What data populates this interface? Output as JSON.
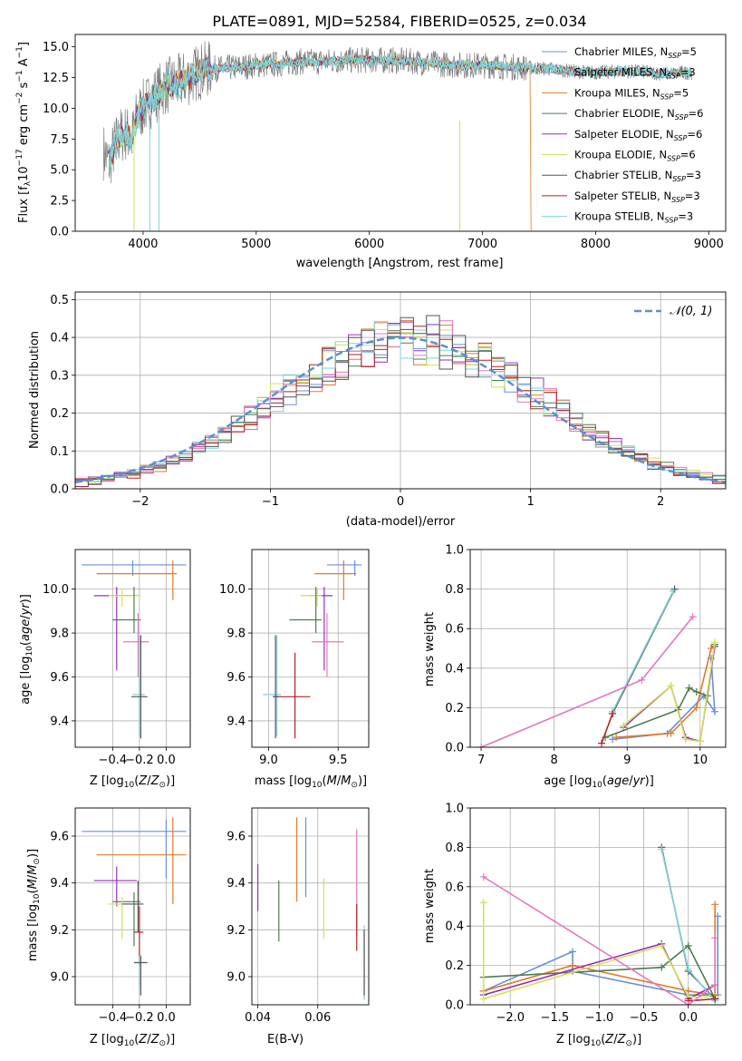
{
  "chart_data": [
    {
      "type": "line",
      "title": "PLATE=0891, MJD=52584, FIBERID=0525, z=0.034",
      "xlabel": "wavelength [Angstrom, rest frame]",
      "ylabel": "Flux [fλ10⁻¹⁷ erg cm⁻² s⁻¹ A⁻¹]",
      "xlim": [
        3400,
        9150
      ],
      "ylim": [
        0,
        16
      ],
      "xticks": [
        4000,
        5000,
        6000,
        7000,
        8000,
        9000
      ],
      "yticks": [
        0.0,
        2.5,
        5.0,
        7.5,
        10.0,
        12.5,
        15.0
      ],
      "ytick_labels": [
        "0.0",
        "2.5",
        "5.0",
        "7.5",
        "10.0",
        "12.5",
        "15.0"
      ],
      "grid": false,
      "legend": "top-right",
      "spectrum": {
        "x": [
          3650,
          3700,
          3750,
          3800,
          3850,
          3900,
          3950,
          4000,
          4100,
          4200,
          4300,
          4400,
          4500,
          4600,
          4800,
          5000,
          5200,
          5400,
          5600,
          5800,
          6000,
          6200,
          6400,
          6600,
          6800,
          7000,
          7200,
          7400,
          7600,
          7800,
          8000,
          8200,
          8400,
          8600,
          8800
        ],
        "y": [
          6.5,
          5.5,
          7.0,
          7.8,
          8.0,
          7.5,
          9.5,
          10.0,
          11.0,
          11.8,
          12.0,
          12.5,
          13.0,
          13.2,
          13.3,
          13.5,
          13.6,
          13.8,
          13.8,
          13.9,
          13.9,
          13.9,
          13.8,
          13.6,
          13.5,
          13.5,
          13.4,
          13.3,
          13.2,
          13.0,
          12.9,
          13.0,
          13.0,
          12.8,
          12.9
        ]
      },
      "series": [
        {
          "name": "Chabrier MILES, N_SSP=5",
          "color": "#6a8fd8"
        },
        {
          "name": "Salpeter MILES, N_SSP=3",
          "color": "#9a9ac0"
        },
        {
          "name": "Kroupa MILES, N_SSP=5",
          "color": "#e07b2a"
        },
        {
          "name": "Chabrier ELODIE, N_SSP=6",
          "color": "#4e7d4e"
        },
        {
          "name": "Salpeter ELODIE, N_SSP=6",
          "color": "#9b2fb5"
        },
        {
          "name": "Kroupa ELODIE, N_SSP=6",
          "color": "#d4e157"
        },
        {
          "name": "Chabrier STELIB, N_SSP=3",
          "color": "#555555"
        },
        {
          "name": "Salpeter STELIB, N_SSP=3",
          "color": "#b22222"
        },
        {
          "name": "Kroupa STELIB, N_SSP=3",
          "color": "#7fd3d9"
        }
      ],
      "legend_labels": [
        "Chabrier MILES, N",
        "Salpeter MILES, N",
        "Kroupa MILES, N",
        "Chabrier ELODIE, N",
        "Salpeter ELODIE, N",
        "Kroupa ELODIE, N",
        "Chabrier STELIB, N",
        "Salpeter STELIB, N",
        "Kroupa STELIB, N"
      ],
      "legend_subs": [
        "SSP",
        "SSP",
        "SSP",
        "SSP",
        "SSP",
        "SSP",
        "SSP",
        "SSP",
        "SSP"
      ],
      "legend_vals": [
        "=5",
        "=3",
        "=5",
        "=6",
        "=6",
        "=6",
        "=3",
        "=3",
        "=3"
      ]
    },
    {
      "type": "line",
      "xlabel": "(data-model)/error",
      "ylabel": "Normed distribution",
      "xlim": [
        -2.5,
        2.5
      ],
      "ylim": [
        0,
        0.52
      ],
      "xticks": [
        -2,
        -1,
        0,
        1,
        2
      ],
      "xtick_labels": [
        "−2",
        "−1",
        "0",
        "1",
        "2"
      ],
      "yticks": [
        0.0,
        0.1,
        0.2,
        0.3,
        0.4,
        0.5
      ],
      "ytick_labels": [
        "0.0",
        "0.1",
        "0.2",
        "0.3",
        "0.4",
        "0.5"
      ],
      "grid": true,
      "legend": "top-right",
      "legend_label": "𝒩(0, 1)",
      "reference_curve": {
        "name": "N(0,1)",
        "color": "#5b8fd4"
      },
      "histogram_bin_edges_range": [
        -2.5,
        2.5
      ],
      "histogram_bin_count": 50
    },
    {
      "type": "scatter",
      "xlabel": "Z [log₁₀(Z/Z⊙)]",
      "ylabel": "age  [log₁₀(age/yr)]",
      "xlim": [
        -0.68,
        0.18
      ],
      "ylim": [
        9.28,
        10.18
      ],
      "xticks": [
        -0.4,
        -0.2,
        0.0
      ],
      "xtick_labels": [
        "−0.4",
        "−0.2",
        "0.0"
      ],
      "yticks": [
        9.4,
        9.6,
        9.8,
        10.0
      ],
      "ytick_labels": [
        "9.4",
        "9.6",
        "9.8",
        "10.0"
      ],
      "grid": true,
      "errorbars": [
        {
          "color": "#6a8fd8",
          "x": -0.25,
          "xerr": [
            0.38,
            0.4
          ],
          "y": 10.11,
          "yerr": [
            0.05,
            0.02
          ]
        },
        {
          "color": "#e07b2a",
          "x": 0.05,
          "xerr": [
            0.57,
            0.03
          ],
          "y": 10.07,
          "yerr": [
            0.12,
            0.06
          ]
        },
        {
          "color": "#9b2fb5",
          "x": -0.37,
          "xerr": [
            0.17,
            0.15
          ],
          "y": 9.97,
          "yerr": [
            0.34,
            0.04
          ]
        },
        {
          "color": "#d4e157",
          "x": -0.33,
          "xerr": [
            0.1,
            0.14
          ],
          "y": 9.97,
          "yerr": [
            0.05,
            0.03
          ]
        },
        {
          "color": "#4e7d4e",
          "x": -0.24,
          "xerr": [
            0.16,
            0.05
          ],
          "y": 9.86,
          "yerr": [
            0.06,
            0.15
          ]
        },
        {
          "color": "#e377c2",
          "x": -0.21,
          "xerr": [
            0.11,
            0.08
          ],
          "y": 9.76,
          "yerr": [
            0.16,
            0.13
          ]
        },
        {
          "color": "#7fd3d9",
          "x": -0.2,
          "xerr": [
            0.05,
            0.04
          ],
          "y": 9.52,
          "yerr": [
            0.19,
            0.27
          ]
        },
        {
          "color": "#555555",
          "x": -0.19,
          "xerr": [
            0.07,
            0.05
          ],
          "y": 9.51,
          "yerr": [
            0.19,
            0.28
          ]
        }
      ]
    },
    {
      "type": "scatter",
      "xlabel": "mass [log₁₀(M/M⊙)]",
      "xlim": [
        8.88,
        9.72
      ],
      "ylim": [
        9.28,
        10.18
      ],
      "xticks": [
        9.0,
        9.5
      ],
      "xtick_labels": [
        "9.0",
        "9.5"
      ],
      "yticks": [
        9.4,
        9.6,
        9.8,
        10.0
      ],
      "ytick_labels": [
        "9.4",
        "9.6",
        "9.8",
        "10.0"
      ],
      "grid": true,
      "errorbars": [
        {
          "color": "#6a8fd8",
          "x": 9.62,
          "xerr": [
            0.2,
            0.05
          ],
          "y": 10.11,
          "yerr": [
            0.05,
            0.02
          ]
        },
        {
          "color": "#e07b2a",
          "x": 9.54,
          "xerr": [
            0.21,
            0.09
          ],
          "y": 10.07,
          "yerr": [
            0.12,
            0.06
          ]
        },
        {
          "color": "#9b2fb5",
          "x": 9.4,
          "xerr": [
            0.1,
            0.06
          ],
          "y": 9.97,
          "yerr": [
            0.34,
            0.04
          ]
        },
        {
          "color": "#d4e157",
          "x": 9.35,
          "xerr": [
            0.12,
            0.03
          ],
          "y": 9.97,
          "yerr": [
            0.05,
            0.03
          ]
        },
        {
          "color": "#4e7d4e",
          "x": 9.34,
          "xerr": [
            0.19,
            0.04
          ],
          "y": 9.86,
          "yerr": [
            0.06,
            0.15
          ]
        },
        {
          "color": "#e377c2",
          "x": 9.42,
          "xerr": [
            0.11,
            0.12
          ],
          "y": 9.76,
          "yerr": [
            0.16,
            0.13
          ]
        },
        {
          "color": "#7fd3d9",
          "x": 9.06,
          "xerr": [
            0.1,
            0.03
          ],
          "y": 9.52,
          "yerr": [
            0.19,
            0.27
          ]
        },
        {
          "color": "#b22222",
          "x": 9.19,
          "xerr": [
            0.14,
            0.11
          ],
          "y": 9.51,
          "yerr": [
            0.19,
            0.2
          ]
        },
        {
          "color": "#555555",
          "x": 9.05,
          "xerr": [
            0.02,
            0.02
          ],
          "y": 9.51,
          "yerr": [
            0.19,
            0.28
          ]
        }
      ]
    },
    {
      "type": "line",
      "xlabel": "age  [log₁₀(age/yr)]",
      "ylabel": "mass weight",
      "xlim": [
        6.85,
        10.35
      ],
      "ylim": [
        0,
        1.0
      ],
      "xticks": [
        7,
        8,
        9,
        10
      ],
      "xtick_labels": [
        "7",
        "8",
        "9",
        "10"
      ],
      "yticks": [
        0.0,
        0.2,
        0.4,
        0.6,
        0.8,
        1.0
      ],
      "ytick_labels": [
        "0.0",
        "0.2",
        "0.4",
        "0.6",
        "0.8",
        "1.0"
      ],
      "grid": true,
      "series": [
        {
          "color": "#6a8fd8",
          "x": [
            8.8,
            9.55,
            10.05,
            10.2,
            10.15
          ],
          "y": [
            0.04,
            0.07,
            0.26,
            0.18,
            0.45
          ]
        },
        {
          "color": "#e07b2a",
          "x": [
            8.85,
            9.6,
            9.95,
            10.15,
            10.2
          ],
          "y": [
            0.05,
            0.07,
            0.2,
            0.5,
            0.51
          ]
        },
        {
          "color": "#4e7d4e",
          "x": [
            8.7,
            9.7,
            9.85,
            9.95,
            10.1,
            10.2
          ],
          "y": [
            0.05,
            0.19,
            0.3,
            0.28,
            0.26,
            0.52
          ]
        },
        {
          "color": "#9b2fb5",
          "x": [
            8.95,
            9.6,
            9.8,
            10.0,
            10.2
          ],
          "y": [
            0.1,
            0.31,
            0.05,
            0.03,
            0.51
          ]
        },
        {
          "color": "#d4e157",
          "x": [
            8.95,
            9.6,
            9.8,
            10.0,
            10.2
          ],
          "y": [
            0.11,
            0.31,
            0.04,
            0.03,
            0.53
          ]
        },
        {
          "color": "#555555",
          "x": [
            8.8,
            9.65
          ],
          "y": [
            0.17,
            0.8
          ]
        },
        {
          "color": "#7fd3d9",
          "x": [
            8.8,
            9.63
          ],
          "y": [
            0.18,
            0.79
          ]
        },
        {
          "color": "#b22222",
          "x": [
            8.65,
            8.8
          ],
          "y": [
            0.02,
            0.17
          ]
        },
        {
          "color": "#e377c2",
          "x": [
            7.0,
            9.2,
            9.9
          ],
          "y": [
            0.0,
            0.34,
            0.66
          ]
        }
      ]
    },
    {
      "type": "errorbar",
      "xlabel": "Z [log₁₀(Z/Z⊙)]",
      "ylabel": "mass [log₁₀(M/M⊙)]",
      "xlim": [
        -0.68,
        0.18
      ],
      "ylim": [
        8.88,
        9.72
      ],
      "xticks": [
        -0.4,
        -0.2,
        0.0
      ],
      "xtick_labels": [
        "−0.4",
        "−0.2",
        "0.0"
      ],
      "yticks": [
        9.0,
        9.2,
        9.4,
        9.6
      ],
      "ytick_labels": [
        "9.0",
        "9.2",
        "9.4",
        "9.6"
      ],
      "grid": true,
      "errorbars": [
        {
          "color": "#6a8fd8",
          "x": 0.0,
          "xerr": [
            0.63,
            0.15
          ],
          "y": 9.62,
          "yerr": [
            0.2,
            0.05
          ]
        },
        {
          "color": "#e07b2a",
          "x": 0.05,
          "xerr": [
            0.57,
            0.1
          ],
          "y": 9.52,
          "yerr": [
            0.21,
            0.16
          ]
        },
        {
          "color": "#9b2fb5",
          "x": -0.37,
          "xerr": [
            0.17,
            0.15
          ],
          "y": 9.41,
          "yerr": [
            0.11,
            0.06
          ]
        },
        {
          "color": "#4e7d4e",
          "x": -0.24,
          "xerr": [
            0.16,
            0.05
          ],
          "y": 9.32,
          "yerr": [
            0.19,
            0.04
          ]
        },
        {
          "color": "#d4e157",
          "x": -0.33,
          "xerr": [
            0.1,
            0.14
          ],
          "y": 9.31,
          "yerr": [
            0.15,
            0.03
          ]
        },
        {
          "color": "#555555",
          "x": -0.21,
          "xerr": [
            0.12,
            0.04
          ],
          "y": 9.31,
          "yerr": [
            0.12,
            0.1
          ]
        },
        {
          "color": "#b22222",
          "x": -0.2,
          "xerr": [
            0.04,
            0.03
          ],
          "y": 9.19,
          "yerr": [
            0.14,
            0.11
          ]
        },
        {
          "color": "#7fd3d9",
          "x": -0.2,
          "xerr": [
            0.04,
            0.04
          ],
          "y": 9.06,
          "yerr": [
            0.11,
            0.03
          ]
        },
        {
          "color": "#555555",
          "x": -0.19,
          "xerr": [
            0.05,
            0.05
          ],
          "y": 9.06,
          "yerr": [
            0.14,
            0.03
          ]
        }
      ]
    },
    {
      "type": "errorbar",
      "xlabel": "E(B-V)",
      "xlim": [
        0.038,
        0.077
      ],
      "ylim": [
        8.88,
        9.72
      ],
      "xticks": [
        0.04,
        0.06
      ],
      "xtick_labels": [
        "0.04",
        "0.06"
      ],
      "yticks": [
        9.0,
        9.2,
        9.4,
        9.6
      ],
      "ytick_labels": [
        "9.0",
        "9.2",
        "9.4",
        "9.6"
      ],
      "grid": true,
      "errorbars": [
        {
          "color": "#9b2fb5",
          "x": 0.04,
          "y": 9.38,
          "yerr": [
            0.1,
            0.1
          ]
        },
        {
          "color": "#4e7d4e",
          "x": 0.047,
          "y": 9.28,
          "yerr": [
            0.13,
            0.13
          ]
        },
        {
          "color": "#e07b2a",
          "x": 0.053,
          "y": 9.5,
          "yerr": [
            0.18,
            0.18
          ]
        },
        {
          "color": "#6a8fd8",
          "x": 0.056,
          "y": 9.51,
          "yerr": [
            0.17,
            0.17
          ]
        },
        {
          "color": "#d4e157",
          "x": 0.062,
          "y": 9.29,
          "yerr": [
            0.13,
            0.13
          ]
        },
        {
          "color": "#e377c2",
          "x": 0.073,
          "y": 9.4,
          "yerr": [
            0.23,
            0.23
          ]
        },
        {
          "color": "#b22222",
          "x": 0.073,
          "y": 9.21,
          "yerr": [
            0.1,
            0.1
          ]
        },
        {
          "color": "#7fd3d9",
          "x": 0.0755,
          "y": 9.06,
          "yerr": [
            0.16,
            0.16
          ]
        },
        {
          "color": "#555555",
          "x": 0.0755,
          "y": 9.06,
          "yerr": [
            0.14,
            0.14
          ]
        }
      ]
    },
    {
      "type": "line",
      "xlabel": "Z [log₁₀(Z/Z⊙)]",
      "ylabel": "mass weight",
      "xlim": [
        -2.45,
        0.42
      ],
      "ylim": [
        0,
        1.0
      ],
      "xticks": [
        -2.0,
        -1.5,
        -1.0,
        -0.5,
        0.0
      ],
      "xtick_labels": [
        "−2.0",
        "−1.5",
        "−1.0",
        "−0.5",
        "0.0"
      ],
      "yticks": [
        0.0,
        0.2,
        0.4,
        0.6,
        0.8,
        1.0
      ],
      "ytick_labels": [
        "0.0",
        "0.2",
        "0.4",
        "0.6",
        "0.8",
        "1.0"
      ],
      "grid": true,
      "series": [
        {
          "color": "#6a8fd8",
          "x": [
            -2.3,
            -1.3,
            -1.3,
            0.0,
            0.33,
            0.33
          ],
          "y": [
            0.07,
            0.27,
            0.17,
            0.05,
            0.05,
            0.45
          ]
        },
        {
          "color": "#e07b2a",
          "x": [
            -2.3,
            -1.3,
            0.0,
            0.3,
            0.3
          ],
          "y": [
            0.07,
            0.2,
            0.07,
            0.05,
            0.51
          ]
        },
        {
          "color": "#4e7d4e",
          "x": [
            -2.3,
            -0.3,
            0.0,
            0.3
          ],
          "y": [
            0.14,
            0.19,
            0.3,
            0.03
          ]
        },
        {
          "color": "#9b2fb5",
          "x": [
            -2.3,
            -0.3,
            0.0,
            0.3
          ],
          "y": [
            0.05,
            0.31,
            0.03,
            0.1
          ]
        },
        {
          "color": "#d4e157",
          "x": [
            -2.3,
            -2.3,
            -0.3,
            0.0,
            0.3
          ],
          "y": [
            0.52,
            0.03,
            0.3,
            0.04,
            0.04
          ]
        },
        {
          "color": "#555555",
          "x": [
            -0.3,
            0.0,
            0.3
          ],
          "y": [
            0.8,
            0.17,
            0.03
          ]
        },
        {
          "color": "#7fd3d9",
          "x": [
            -0.3,
            0.0,
            0.3
          ],
          "y": [
            0.79,
            0.18,
            0.02
          ]
        },
        {
          "color": "#b22222",
          "x": [
            0.0,
            0.3
          ],
          "y": [
            0.02,
            0.03
          ]
        },
        {
          "color": "#e377c2",
          "x": [
            -2.3,
            0.0,
            0.3,
            0.3
          ],
          "y": [
            0.65,
            0.0,
            0.1,
            0.34
          ]
        }
      ]
    }
  ]
}
